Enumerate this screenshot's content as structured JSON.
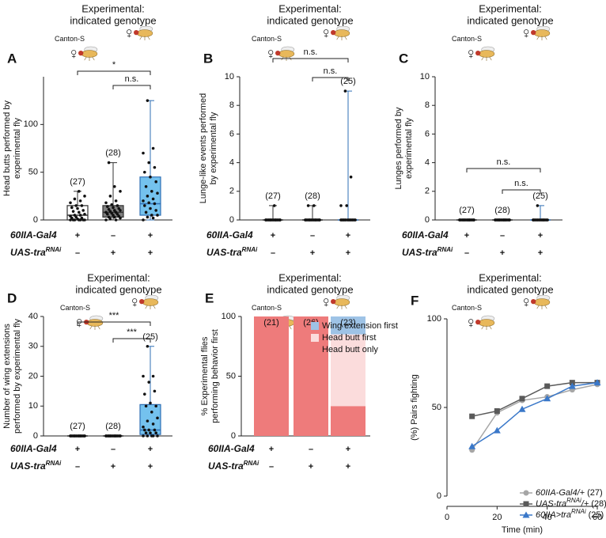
{
  "chart_data": [
    {
      "type": "box",
      "panel": "A",
      "header": [
        "Experimental:",
        "indicated genotype"
      ],
      "strain": "Canton-S",
      "ylabel": [
        "Head butts performed by",
        "experimental fly"
      ],
      "ylim": [
        0,
        150
      ],
      "yticks": [
        0,
        50,
        100
      ],
      "groups": [
        {
          "n": "(27)",
          "q1": 0,
          "median": 5,
          "q3": 15,
          "whisker": [
            0,
            30
          ],
          "color": "#ffffff",
          "edge": "#333333",
          "points": [
            0,
            0,
            0,
            0,
            0,
            0,
            0,
            1,
            2,
            2,
            3,
            4,
            5,
            5,
            6,
            8,
            9,
            10,
            12,
            13,
            15,
            15,
            18,
            20,
            22,
            25,
            30
          ]
        },
        {
          "n": "(28)",
          "q1": 3,
          "median": 8,
          "q3": 15,
          "whisker": [
            0,
            60
          ],
          "color": "#808080",
          "edge": "#333333",
          "points": [
            0,
            0,
            1,
            2,
            3,
            3,
            4,
            5,
            6,
            6,
            7,
            8,
            8,
            9,
            10,
            10,
            11,
            12,
            13,
            14,
            15,
            16,
            18,
            20,
            25,
            30,
            35,
            60
          ]
        },
        {
          "n": null,
          "q1": 5,
          "median": 17,
          "q3": 45,
          "whisker": [
            0,
            125
          ],
          "color": "#74c2ee",
          "edge": "#2f6fb5",
          "points": [
            0,
            2,
            3,
            5,
            5,
            8,
            10,
            12,
            15,
            17,
            18,
            20,
            22,
            25,
            28,
            30,
            35,
            40,
            45,
            50,
            55,
            60,
            70,
            75,
            125
          ]
        }
      ],
      "genotype": {
        "rows": [
          [
            {
              "text": "60IIA-Gal4"
            }
          ],
          [
            {
              "text": "UAS-tra"
            },
            {
              "text": "RNAi",
              "sup": true
            }
          ]
        ],
        "signs": [
          [
            "+",
            "–",
            "+"
          ],
          [
            "–",
            "+",
            "+"
          ]
        ]
      },
      "brackets": [
        {
          "groups": [
            0,
            2
          ],
          "label": "*"
        },
        {
          "groups": [
            1,
            2
          ],
          "label": "n.s."
        }
      ]
    },
    {
      "type": "box",
      "panel": "B",
      "header": [
        "Experimental:",
        "indicated genotype"
      ],
      "strain": "Canton-S",
      "ylabel": [
        "Lunge-like events performed",
        "by experimental fly"
      ],
      "ylim": [
        0,
        10
      ],
      "yticks": [
        0,
        2,
        4,
        6,
        8,
        10
      ],
      "groups": [
        {
          "n": "(27)",
          "q1": 0,
          "median": 0,
          "q3": 0,
          "whisker": [
            0,
            1
          ],
          "color": "#ffffff",
          "edge": "#333333",
          "points": [
            0,
            0,
            0,
            0,
            0,
            0,
            0,
            0,
            0,
            0,
            0,
            0,
            0,
            0,
            0,
            0,
            0,
            0,
            0,
            0,
            0,
            0,
            0,
            0,
            0,
            0,
            1
          ]
        },
        {
          "n": "(28)",
          "q1": 0,
          "median": 0,
          "q3": 0,
          "whisker": [
            0,
            1
          ],
          "color": "#808080",
          "edge": "#333333",
          "points": [
            0,
            0,
            0,
            0,
            0,
            0,
            0,
            0,
            0,
            0,
            0,
            0,
            0,
            0,
            0,
            0,
            0,
            0,
            0,
            0,
            0,
            0,
            0,
            0,
            0,
            0,
            1,
            1
          ]
        },
        {
          "n": "(25)",
          "q1": 0,
          "median": 0,
          "q3": 0,
          "whisker": [
            0,
            9
          ],
          "color": "#74c2ee",
          "edge": "#2f6fb5",
          "points": [
            0,
            0,
            0,
            0,
            0,
            0,
            0,
            0,
            0,
            0,
            0,
            0,
            0,
            0,
            0,
            0,
            0,
            0,
            0,
            0,
            0,
            1,
            1,
            3,
            9
          ]
        }
      ],
      "genotype": {
        "rows": [
          [
            {
              "text": "60IIA-Gal4"
            }
          ],
          [
            {
              "text": "UAS-tra"
            },
            {
              "text": "RNAi",
              "sup": true
            }
          ]
        ],
        "signs": [
          [
            "+",
            "–",
            "+"
          ],
          [
            "–",
            "+",
            "+"
          ]
        ]
      },
      "brackets": [
        {
          "groups": [
            0,
            2
          ],
          "label": "n.s."
        },
        {
          "groups": [
            1,
            2
          ],
          "label": "n.s."
        }
      ]
    },
    {
      "type": "box",
      "panel": "C",
      "header": [
        "Experimental:",
        "indicated genotype"
      ],
      "strain": "Canton-S",
      "ylabel": [
        "Lunges performed by",
        "experimental fly"
      ],
      "ylim": [
        0,
        10
      ],
      "yticks": [
        0,
        2,
        4,
        6,
        8,
        10
      ],
      "groups": [
        {
          "n": "(27)",
          "q1": 0,
          "median": 0,
          "q3": 0,
          "whisker": [
            0,
            0
          ],
          "color": "#ffffff",
          "edge": "#333333",
          "points": [
            0,
            0,
            0,
            0,
            0,
            0,
            0,
            0,
            0,
            0,
            0,
            0,
            0,
            0,
            0,
            0,
            0,
            0,
            0,
            0,
            0,
            0,
            0,
            0,
            0,
            0,
            0
          ]
        },
        {
          "n": "(28)",
          "q1": 0,
          "median": 0,
          "q3": 0,
          "whisker": [
            0,
            0
          ],
          "color": "#808080",
          "edge": "#333333",
          "points": [
            0,
            0,
            0,
            0,
            0,
            0,
            0,
            0,
            0,
            0,
            0,
            0,
            0,
            0,
            0,
            0,
            0,
            0,
            0,
            0,
            0,
            0,
            0,
            0,
            0,
            0,
            0,
            0
          ]
        },
        {
          "n": "(25)",
          "q1": 0,
          "median": 0,
          "q3": 0,
          "whisker": [
            0,
            1
          ],
          "color": "#74c2ee",
          "edge": "#2f6fb5",
          "points": [
            0,
            0,
            0,
            0,
            0,
            0,
            0,
            0,
            0,
            0,
            0,
            0,
            0,
            0,
            0,
            0,
            0,
            0,
            0,
            0,
            0,
            0,
            0,
            0,
            1
          ]
        }
      ],
      "genotype": {
        "rows": [
          [
            {
              "text": "60IIA-Gal4"
            }
          ],
          [
            {
              "text": "UAS-tra"
            },
            {
              "text": "RNAi",
              "sup": true
            }
          ]
        ],
        "signs": [
          [
            "+",
            "–",
            "+"
          ],
          [
            "–",
            "+",
            "+"
          ]
        ]
      },
      "brackets": [
        {
          "groups": [
            0,
            2
          ],
          "label": "n.s."
        },
        {
          "groups": [
            1,
            2
          ],
          "label": "n.s."
        }
      ]
    },
    {
      "type": "box",
      "panel": "D",
      "header": [
        "Experimental:",
        "indicated genotype"
      ],
      "strain": "Canton-S",
      "ylabel": [
        "Number of wing extensions",
        "performed by experimental fly"
      ],
      "ylim": [
        0,
        40
      ],
      "yticks": [
        0,
        10,
        20,
        30,
        40
      ],
      "groups": [
        {
          "n": "(27)",
          "q1": 0,
          "median": 0,
          "q3": 0,
          "whisker": [
            0,
            0
          ],
          "color": "#ffffff",
          "edge": "#333333",
          "points": [
            0,
            0,
            0,
            0,
            0,
            0,
            0,
            0,
            0,
            0,
            0,
            0,
            0,
            0,
            0,
            0,
            0,
            0,
            0,
            0,
            0,
            0,
            0,
            0,
            0,
            0,
            0
          ]
        },
        {
          "n": "(28)",
          "q1": 0,
          "median": 0,
          "q3": 0,
          "whisker": [
            0,
            0
          ],
          "color": "#808080",
          "edge": "#333333",
          "points": [
            0,
            0,
            0,
            0,
            0,
            0,
            0,
            0,
            0,
            0,
            0,
            0,
            0,
            0,
            0,
            0,
            0,
            0,
            0,
            0,
            0,
            0,
            0,
            0,
            0,
            0,
            0,
            0
          ]
        },
        {
          "n": "(25)",
          "q1": 0.5,
          "median": 2,
          "q3": 10.5,
          "whisker": [
            0,
            30
          ],
          "color": "#74c2ee",
          "edge": "#2f6fb5",
          "points": [
            0,
            0,
            0,
            0,
            0,
            1,
            1,
            1,
            2,
            2,
            2,
            3,
            4,
            5,
            6,
            8,
            10,
            10,
            11,
            14,
            15,
            18,
            20,
            20,
            30
          ]
        }
      ],
      "genotype": {
        "rows": [
          [
            {
              "text": "60IIA-Gal4"
            }
          ],
          [
            {
              "text": "UAS-tra"
            },
            {
              "text": "RNAi",
              "sup": true
            }
          ]
        ],
        "signs": [
          [
            "+",
            "–",
            "+"
          ],
          [
            "–",
            "+",
            "+"
          ]
        ]
      },
      "brackets": [
        {
          "groups": [
            0,
            2
          ],
          "label": "***"
        },
        {
          "groups": [
            1,
            2
          ],
          "label": "***"
        }
      ]
    },
    {
      "type": "stacked_bar",
      "panel": "E",
      "header": [
        "Experimental:",
        "indicated genotype"
      ],
      "strain": "Canton-S",
      "ylabel": [
        "% Experimental flies",
        "performing behavior first"
      ],
      "ylim": [
        0,
        100
      ],
      "yticks": [
        0,
        50,
        100
      ],
      "n_labels": [
        "(21)",
        "(26)",
        "(23)"
      ],
      "series": [
        {
          "name": "Head butt only",
          "color": "#ee7b7b",
          "values": [
            100,
            100,
            25
          ]
        },
        {
          "name": "Head butt first",
          "color": "#fbdcdc",
          "values": [
            0,
            0,
            60
          ]
        },
        {
          "name": "Wing extension first",
          "color": "#9ec3e6",
          "values": [
            0,
            0,
            15
          ]
        }
      ],
      "genotype": {
        "rows": [
          [
            {
              "text": "60IIA-Gal4"
            }
          ],
          [
            {
              "text": "UAS-tra"
            },
            {
              "text": "RNAi",
              "sup": true
            }
          ]
        ],
        "signs": [
          [
            "+",
            "–",
            "+"
          ],
          [
            "–",
            "+",
            "+"
          ]
        ]
      }
    },
    {
      "type": "line",
      "panel": "F",
      "header": [
        "Experimental:",
        "indicated genotype"
      ],
      "strain": "Canton-S",
      "ylabel": [
        "(%) Pairs fighting"
      ],
      "xlabel": "Time (min)",
      "x": [
        10,
        20,
        30,
        40,
        50,
        60
      ],
      "xlim": [
        0,
        60
      ],
      "xticks": [
        0,
        20,
        40,
        60
      ],
      "ylim": [
        0,
        100
      ],
      "yticks": [
        0,
        50,
        100
      ],
      "series": [
        {
          "name": [
            {
              "text": "60IIA-Gal4/+"
            }
          ],
          "n": "(27)",
          "color": "#a6a6a6",
          "marker": "circle",
          "values": [
            26,
            47,
            54,
            56,
            60,
            63
          ]
        },
        {
          "name": [
            {
              "text": "UAS-tra"
            },
            {
              "text": "RNAi",
              "sup": true
            },
            {
              "text": "/+"
            }
          ],
          "n": "(28)",
          "color": "#5a5a5a",
          "marker": "square",
          "values": [
            45,
            48,
            55,
            62,
            64,
            64
          ]
        },
        {
          "name": [
            {
              "text": "60IIA>tra"
            },
            {
              "text": "RNAi",
              "sup": true
            }
          ],
          "n": "(25)",
          "color": "#3a78c9",
          "marker": "triangle",
          "values": [
            28,
            37,
            49,
            55,
            62,
            64
          ]
        }
      ]
    }
  ]
}
